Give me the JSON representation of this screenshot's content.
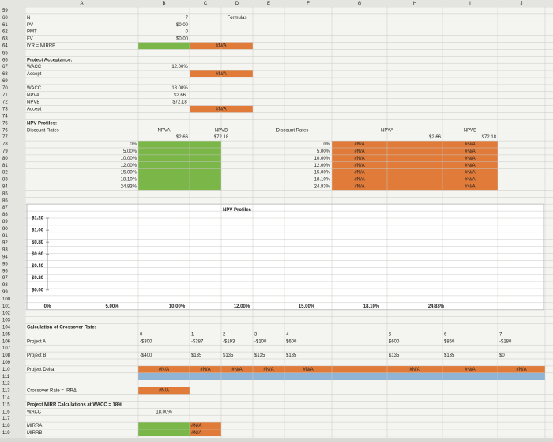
{
  "columns": [
    "A",
    "B",
    "C",
    "D",
    "E",
    "F",
    "G",
    "H",
    "I",
    "J"
  ],
  "rows": [
    "59",
    "60",
    "61",
    "62",
    "63",
    "64",
    "65",
    "66",
    "67",
    "68",
    "69",
    "70",
    "71",
    "72",
    "73",
    "74",
    "75",
    "76",
    "77",
    "78",
    "79",
    "80",
    "81",
    "82",
    "83",
    "84",
    "85",
    "86",
    "87",
    "88",
    "89",
    "90",
    "91",
    "92",
    "93",
    "94",
    "95",
    "96",
    "97",
    "98",
    "99",
    "100",
    "101",
    "102",
    "103",
    "104",
    "105",
    "106",
    "107",
    "108",
    "109",
    "110",
    "111",
    "112",
    "113",
    "114",
    "115",
    "116",
    "117",
    "118",
    "119"
  ],
  "cells": [
    "N",
    "7",
    "Formulas",
    "PV",
    "$0.00",
    "PMT",
    "0",
    "FV",
    "$0.00",
    "IYR = MIRRB",
    "#N/A",
    "Project Acceptance:",
    "WACC",
    "12.00%",
    "Accept",
    "#N/A",
    "WACC",
    "18.00%",
    "NPVA",
    "$2.66",
    "NPVB",
    "$72.18",
    "Accept",
    "#N/A",
    "NPV Profiles:",
    "Discount Rates",
    "NPVA",
    "NPVB",
    "Discount Rates",
    "NPVA",
    "NPVB",
    "$2.66",
    "$72.18",
    "$2.66",
    "$72.18",
    "0%",
    "5.00%",
    "10.00%",
    "12.00%",
    "15.00%",
    "18.10%",
    "24.83%",
    "0%",
    "5.00%",
    "10.00%",
    "12.00%",
    "15.00%",
    "18.10%",
    "24.83%",
    "#N/A",
    "#N/A",
    "#N/A",
    "#N/A",
    "#N/A",
    "#N/A",
    "#N/A",
    "#N/A",
    "#N/A",
    "#N/A",
    "#N/A",
    "#N/A",
    "#N/A",
    "#N/A",
    "Calculation of Crossover Rate:",
    "0",
    "1",
    "2",
    "3",
    "4",
    "5",
    "6",
    "7",
    "Project A",
    "-$300",
    "-$387",
    "-$193",
    "-$100",
    "$600",
    "$600",
    "$850",
    "-$180",
    "Project B",
    "-$400",
    "$135",
    "$135",
    "$135",
    "$135",
    "$135",
    "$135",
    "$0",
    "Project Delta",
    "#N/A",
    "#N/A",
    "#N/A",
    "#N/A",
    "#N/A",
    "#N/A",
    "#N/A",
    "#N/A",
    "Crossover Rate = IRRΔ",
    "#N/A",
    "Project MIRR Calculations at WACC = 18%",
    "WACC",
    "18.00%",
    "MIRRA",
    "#N/A",
    "MIRRB",
    "#N/A"
  ],
  "chart": {
    "title": "NPV Profiles",
    "yticks": [
      "$1.20",
      "$1.00",
      "$0.80",
      "$0.60",
      "$0.40",
      "$0.20",
      "$0.00"
    ],
    "xticks": [
      "0%",
      "5.00%",
      "10.00%",
      "12.00%",
      "15.00%",
      "18.10%",
      "24.83%"
    ]
  }
}
